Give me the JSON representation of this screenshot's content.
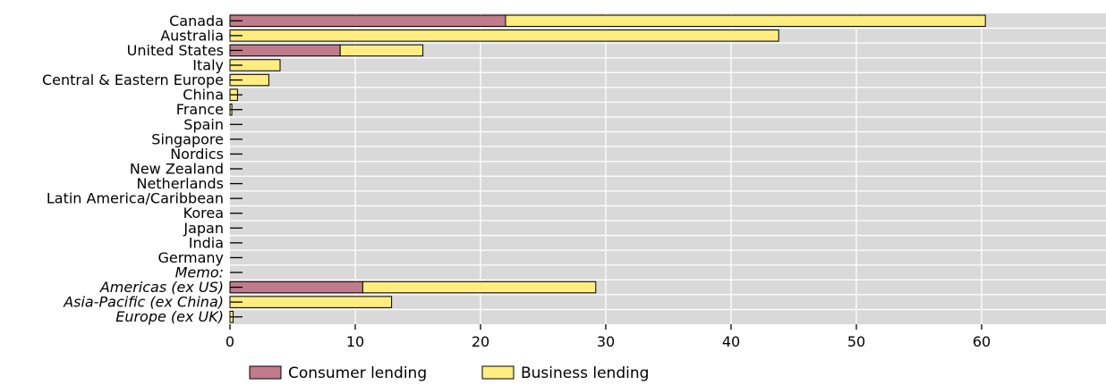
{
  "chart_data": {
    "type": "bar",
    "orientation": "horizontal",
    "stacked": true,
    "categories": [
      "Canada",
      "Australia",
      "United States",
      "Italy",
      "Central & Eastern Europe",
      "China",
      "France",
      "Spain",
      "Singapore",
      "Nordics",
      "New Zealand",
      "Netherlands",
      "Latin America/Caribbean",
      "Korea",
      "Japan",
      "India",
      "Germany",
      "Memo:",
      "Americas (ex US)",
      "Asia-Pacific (ex China)",
      "Europe (ex UK)"
    ],
    "italic_categories": [
      "Memo:",
      "Americas (ex US)",
      "Asia-Pacific (ex China)",
      "Europe (ex UK)"
    ],
    "series": [
      {
        "name": "Consumer lending",
        "color": "#c07b8c",
        "values": [
          22.0,
          0,
          8.8,
          0,
          0,
          0,
          0,
          0,
          0,
          0,
          0,
          0,
          0,
          0,
          0,
          0,
          0,
          0,
          10.6,
          0,
          0
        ]
      },
      {
        "name": "Business lending",
        "color": "#ffed80",
        "values": [
          38.3,
          43.8,
          6.6,
          4.0,
          3.1,
          0.6,
          0.15,
          0,
          0,
          0,
          0,
          0,
          0,
          0,
          0,
          0,
          0,
          0,
          18.6,
          12.9,
          0.25
        ]
      }
    ],
    "x_ticks": [
      "0",
      "10",
      "20",
      "30",
      "40",
      "50",
      "60"
    ],
    "xlim": [
      0,
      69
    ],
    "grid": true,
    "legend_position": "bottom"
  }
}
